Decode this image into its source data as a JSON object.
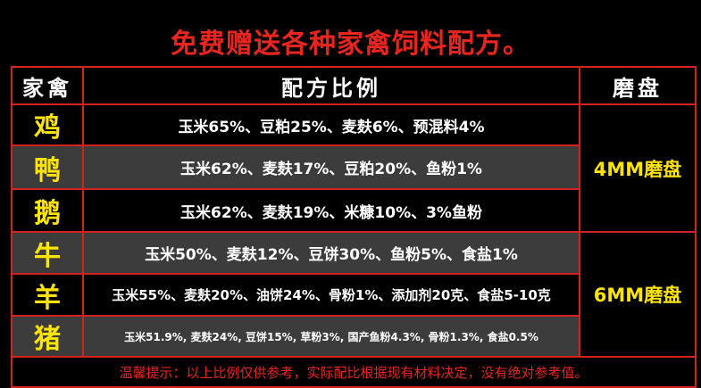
{
  "title": "免费赠送各种家禽饲料配方。",
  "table": {
    "header": [
      "家禽",
      "配方比例",
      "磨盘"
    ],
    "rows": [
      {
        "animal": "鸡",
        "recipe": "玉米65%、豆粕25%、麦麸6%、预混料4%"
      },
      {
        "animal": "鸭",
        "recipe": "玉米62%、麦麸17%、豆粕20%、鱼粉1%"
      },
      {
        "animal": "鹅",
        "recipe": "玉米62%、麦麸19%、米糠10%、3%鱼粉"
      },
      {
        "animal": "牛",
        "recipe": "玉米50%、麦麸12%、豆饼30%、鱼粉5%、食盐1%"
      },
      {
        "animal": "羊",
        "recipe": "玉米55%、麦麸20%、油饼24%、骨粉1%、添加剂20克、食盐5-10克"
      },
      {
        "animal": "猪",
        "recipe": "玉米51.9%, 麦麸24%, 豆饼15%, 草粉3%, 国产鱼粉4.3%, 骨粉1.3%, 食盐0.5%"
      }
    ],
    "mills": [
      "4MM磨盘",
      "6MM磨盘"
    ],
    "footer": "温馨提示：以上比例仅供参考，实际配比根据现有材料决定，没有绝对参考值。"
  }
}
